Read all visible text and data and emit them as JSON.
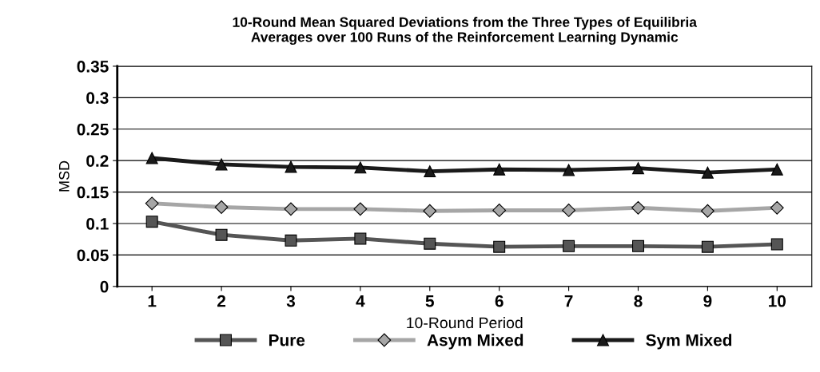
{
  "chart_data": {
    "type": "line",
    "title": "10-Round Mean Squared Deviations from the Three Types of Equilibria\nAverages over 100 Runs of the Reinforcement Learning Dynamic",
    "xlabel": "10-Round Period",
    "ylabel": "MSD",
    "categories": [
      "1",
      "2",
      "3",
      "4",
      "5",
      "6",
      "7",
      "8",
      "9",
      "10"
    ],
    "series": [
      {
        "name": "Pure",
        "color": "#555555",
        "marker": "square",
        "values": [
          0.103,
          0.082,
          0.073,
          0.076,
          0.068,
          0.063,
          0.064,
          0.064,
          0.063,
          0.067
        ]
      },
      {
        "name": "Asym Mixed",
        "color": "#a6a6a6",
        "marker": "diamond",
        "values": [
          0.132,
          0.126,
          0.123,
          0.123,
          0.12,
          0.121,
          0.121,
          0.125,
          0.12,
          0.125
        ]
      },
      {
        "name": "Sym Mixed",
        "color": "#1a1a1a",
        "marker": "triangle",
        "values": [
          0.204,
          0.194,
          0.19,
          0.189,
          0.183,
          0.186,
          0.185,
          0.188,
          0.181,
          0.186
        ]
      }
    ],
    "ylim": [
      0,
      0.35
    ],
    "yticks": [
      0,
      0.05,
      0.1,
      0.15,
      0.2,
      0.25,
      0.3,
      0.35
    ],
    "grid": "y",
    "legend": "bottom",
    "line_style": "solid"
  }
}
